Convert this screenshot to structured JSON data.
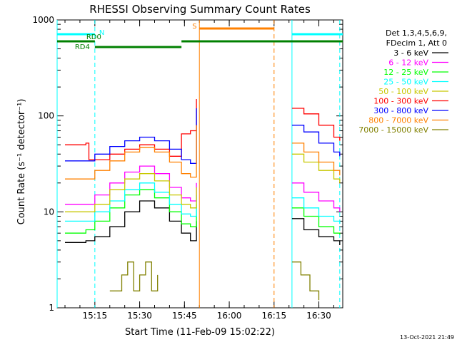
{
  "chart_data": {
    "type": "line",
    "title": "RHESSI Observing Summary Count Rates",
    "xlabel": "Start Time (11-Feb-09 15:02:22)",
    "ylabel": "Count Rate (s⁻¹ detector⁻¹)",
    "y_scale": "log",
    "ylim": [
      1,
      1000
    ],
    "y_ticks": [
      "1",
      "10",
      "100",
      "1000"
    ],
    "xlim": [
      "15:02:22",
      "16:38:00"
    ],
    "x_ticks": [
      "15:15",
      "15:30",
      "15:45",
      "16:00",
      "16:15",
      "16:30"
    ],
    "grid": false,
    "legend_position": "right",
    "legend_header": [
      "Det 1,3,4,5,6,9,",
      "FDecim 1, Att 0"
    ],
    "footer_date": "13-Oct-2021 21:49",
    "gaps": [
      [
        "15:50",
        "16:21"
      ]
    ],
    "series": [
      {
        "name": "3 - 6 keV",
        "color": "#000000",
        "x": [
          "15:05",
          "15:12",
          "15:15",
          "15:20",
          "15:25",
          "15:30",
          "15:35",
          "15:40",
          "15:44",
          "15:47",
          "15:49",
          "16:21",
          "16:25",
          "16:30",
          "16:35",
          "16:37"
        ],
        "values": [
          4.8,
          5.0,
          5.5,
          7.0,
          10,
          13,
          11,
          8,
          6,
          5,
          8,
          8.5,
          6.5,
          5.5,
          5,
          4.5
        ]
      },
      {
        "name": "6 - 12 keV",
        "color": "#ff00ff",
        "x": [
          "15:05",
          "15:12",
          "15:15",
          "15:20",
          "15:25",
          "15:30",
          "15:35",
          "15:40",
          "15:44",
          "15:47",
          "15:49",
          "16:21",
          "16:25",
          "16:30",
          "16:35",
          "16:37"
        ],
        "values": [
          12,
          12,
          15,
          20,
          26,
          30,
          25,
          18,
          14,
          13,
          20,
          20,
          16,
          13,
          11,
          10
        ]
      },
      {
        "name": "12 - 25 keV",
        "color": "#00ff00",
        "x": [
          "15:05",
          "15:12",
          "15:15",
          "15:20",
          "15:25",
          "15:30",
          "15:35",
          "15:40",
          "15:44",
          "15:47",
          "15:49",
          "16:21",
          "16:25",
          "16:30",
          "16:35",
          "16:37"
        ],
        "values": [
          6,
          6.5,
          8,
          11,
          15,
          17,
          14,
          10,
          7.5,
          7,
          12,
          11,
          9,
          7,
          6,
          5.8
        ]
      },
      {
        "name": "25 - 50 keV",
        "color": "#00ffff",
        "x": [
          "15:05",
          "15:12",
          "15:15",
          "15:20",
          "15:25",
          "15:30",
          "15:35",
          "15:40",
          "15:44",
          "15:47",
          "15:49",
          "16:21",
          "16:25",
          "16:30",
          "16:35",
          "16:37"
        ],
        "values": [
          8,
          8,
          10,
          13,
          17,
          20,
          16,
          12,
          9.5,
          9,
          15,
          14,
          11,
          9,
          8,
          7.5
        ]
      },
      {
        "name": "50 - 100 keV",
        "color": "#c8c800",
        "x": [
          "15:05",
          "15:12",
          "15:15",
          "15:20",
          "15:25",
          "15:30",
          "15:35",
          "15:40",
          "15:44",
          "15:47",
          "15:49",
          "16:21",
          "16:25",
          "16:30",
          "16:35",
          "16:37"
        ],
        "values": [
          10,
          10,
          12,
          17,
          22,
          25,
          21,
          15,
          12,
          11,
          18,
          40,
          33,
          27,
          22,
          20
        ]
      },
      {
        "name": "100 - 300 keV",
        "color": "#ff0000",
        "x": [
          "15:05",
          "15:12",
          "15:13",
          "15:15",
          "15:20",
          "15:25",
          "15:30",
          "15:35",
          "15:40",
          "15:44",
          "15:47",
          "15:49",
          "16:21",
          "16:25",
          "16:30",
          "16:35",
          "16:37"
        ],
        "values": [
          50,
          52,
          35,
          35,
          40,
          45,
          50,
          45,
          38,
          65,
          70,
          150,
          120,
          105,
          80,
          60,
          55
        ]
      },
      {
        "name": "300 - 800 keV",
        "color": "#0000ff",
        "x": [
          "15:05",
          "15:12",
          "15:15",
          "15:20",
          "15:25",
          "15:30",
          "15:35",
          "15:40",
          "15:44",
          "15:47",
          "15:49",
          "16:21",
          "16:25",
          "16:30",
          "16:35",
          "16:37"
        ],
        "values": [
          34,
          34,
          40,
          48,
          55,
          60,
          55,
          45,
          35,
          32,
          120,
          80,
          68,
          52,
          42,
          38
        ]
      },
      {
        "name": "800 - 7000 keV",
        "color": "#ff8000",
        "x": [
          "15:05",
          "15:12",
          "15:15",
          "15:20",
          "15:25",
          "15:30",
          "15:35",
          "15:40",
          "15:44",
          "15:47",
          "15:49",
          "16:21",
          "16:25",
          "16:30",
          "16:35",
          "16:37"
        ],
        "values": [
          22,
          22,
          27,
          34,
          42,
          47,
          42,
          33,
          25,
          23,
          80,
          52,
          42,
          33,
          27,
          24
        ]
      },
      {
        "name": "7000 - 15000 keV",
        "color": "#808000",
        "x": [
          "15:20",
          "15:24",
          "15:26",
          "15:28",
          "15:30",
          "15:32",
          "15:34",
          "15:36",
          "16:21",
          "16:24",
          "16:27",
          "16:30"
        ],
        "values": [
          1.5,
          2.2,
          3.0,
          1.5,
          2.2,
          3.0,
          1.5,
          2.2,
          3.0,
          2.2,
          1.5,
          1.2
        ]
      }
    ],
    "state_bars": [
      {
        "label": "N",
        "color": "#00ffff",
        "segments": [
          [
            "15:02:22",
            "15:15"
          ],
          [
            "16:21",
            "16:38"
          ]
        ]
      },
      {
        "label": "RD0",
        "color": "#008000",
        "segments": [
          [
            "15:02:22",
            "15:15"
          ],
          [
            "15:44",
            "16:38"
          ]
        ]
      },
      {
        "label": "RD4",
        "color": "#008000",
        "segments": [
          [
            "15:15",
            "15:44"
          ]
        ]
      },
      {
        "label": "S",
        "color": "#ff8000",
        "segments": [
          [
            "15:50",
            "16:15"
          ]
        ]
      }
    ],
    "vertical_markers": [
      {
        "x": "15:02:22",
        "color": "#00ffff",
        "style": "solid"
      },
      {
        "x": "15:15",
        "color": "#00ffff",
        "style": "dashed"
      },
      {
        "x": "15:50",
        "color": "#ff8000",
        "style": "solid"
      },
      {
        "x": "16:15",
        "color": "#ff8000",
        "style": "dashed"
      },
      {
        "x": "16:21",
        "color": "#00ffff",
        "style": "solid"
      },
      {
        "x": "16:37",
        "color": "#00ffff",
        "style": "dashed"
      }
    ]
  }
}
